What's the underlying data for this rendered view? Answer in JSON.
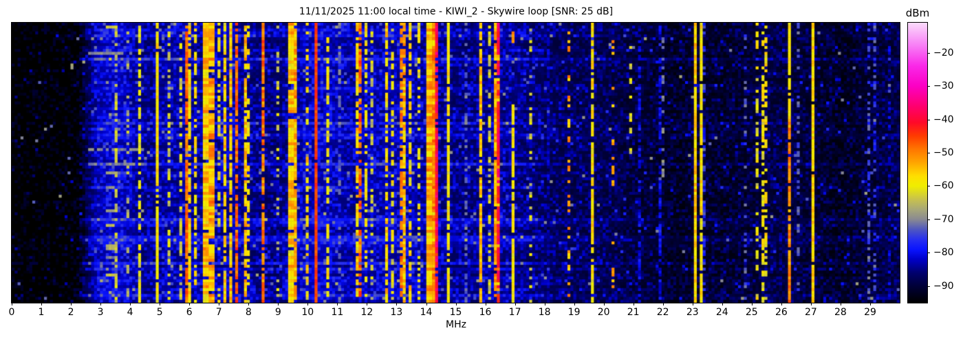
{
  "figure": {
    "background": "#ffffff"
  },
  "chart_data": {
    "type": "heatmap",
    "title": "11/11/2025 11:00 local time - KIWI_2 - Skywire loop [SNR: 25 dB]",
    "subtitle": "",
    "xlabel": "MHz",
    "x_range": [
      0,
      30
    ],
    "x_ticks": [
      0,
      1,
      2,
      3,
      4,
      5,
      6,
      7,
      8,
      9,
      10,
      11,
      12,
      13,
      14,
      15,
      16,
      17,
      18,
      19,
      20,
      21,
      22,
      23,
      24,
      25,
      26,
      27,
      28,
      29
    ],
    "y_axis_ticks": [],
    "grid": "off",
    "colorbar": {
      "label": "dBm",
      "range": [
        -95,
        -11
      ],
      "ticks": [
        {
          "v": -20,
          "label": "−20"
        },
        {
          "v": -30,
          "label": "−30"
        },
        {
          "v": -40,
          "label": "−40"
        },
        {
          "v": -50,
          "label": "−50"
        },
        {
          "v": -60,
          "label": "−60"
        },
        {
          "v": -70,
          "label": "−70"
        },
        {
          "v": -80,
          "label": "−80"
        },
        {
          "v": -90,
          "label": "−90"
        }
      ],
      "colormap_stops": [
        [
          -95,
          "#000000"
        ],
        [
          -90,
          "#000038"
        ],
        [
          -86,
          "#00006e"
        ],
        [
          -82,
          "#0000c8"
        ],
        [
          -79,
          "#0a14ff"
        ],
        [
          -76,
          "#2830f0"
        ],
        [
          -73,
          "#5058c0"
        ],
        [
          -70,
          "#8a8a92"
        ],
        [
          -67,
          "#a8a878"
        ],
        [
          -64,
          "#c8c24e"
        ],
        [
          -60,
          "#f0ee00"
        ],
        [
          -57,
          "#ffdf00"
        ],
        [
          -53,
          "#ffa600"
        ],
        [
          -49,
          "#ff7700"
        ],
        [
          -45,
          "#ff3c00"
        ],
        [
          -41,
          "#ff0a28"
        ],
        [
          -36,
          "#ff0070"
        ],
        [
          -30,
          "#fc00c4"
        ],
        [
          -24,
          "#fa28e8"
        ],
        [
          -18,
          "#f87cf6"
        ],
        [
          -11,
          "#fbdcfb"
        ]
      ]
    },
    "noise_floor_dbm": [
      [
        0,
        -97
      ],
      [
        1.5,
        -97
      ],
      [
        2.3,
        -96
      ],
      [
        2.55,
        -90
      ],
      [
        2.8,
        -85
      ],
      [
        3.1,
        -83.5
      ],
      [
        3.5,
        -82.5
      ],
      [
        3.9,
        -84
      ],
      [
        4.3,
        -86
      ],
      [
        4.7,
        -87
      ],
      [
        5.1,
        -85.5
      ],
      [
        5.5,
        -85.5
      ],
      [
        5.9,
        -86
      ],
      [
        6.4,
        -86
      ],
      [
        6.9,
        -85.5
      ],
      [
        7.4,
        -85
      ],
      [
        7.9,
        -86.5
      ],
      [
        8.6,
        -87.5
      ],
      [
        9.2,
        -87
      ],
      [
        9.8,
        -84.5
      ],
      [
        10.4,
        -83.5
      ],
      [
        11.0,
        -84.5
      ],
      [
        11.6,
        -85.5
      ],
      [
        12.2,
        -84.5
      ],
      [
        12.8,
        -84.5
      ],
      [
        13.4,
        -84.5
      ],
      [
        14.0,
        -86
      ],
      [
        14.6,
        -86.5
      ],
      [
        15.2,
        -87
      ],
      [
        15.8,
        -86.5
      ],
      [
        16.4,
        -86
      ],
      [
        17.0,
        -86.5
      ],
      [
        17.6,
        -88
      ],
      [
        18.2,
        -88.5
      ],
      [
        19.0,
        -89
      ],
      [
        20.0,
        -89.5
      ],
      [
        21.0,
        -91
      ],
      [
        21.8,
        -92
      ],
      [
        22.5,
        -93
      ],
      [
        23.2,
        -92
      ],
      [
        24.0,
        -92.5
      ],
      [
        24.8,
        -92
      ],
      [
        25.6,
        -90.5
      ],
      [
        26.4,
        -91
      ],
      [
        27.2,
        -92
      ],
      [
        28.0,
        -93
      ],
      [
        28.8,
        -92
      ],
      [
        29.4,
        -91
      ],
      [
        30,
        -90.5
      ]
    ],
    "signals": [
      {
        "f": 3.35,
        "w": 0.28,
        "level": -65,
        "jit": 5,
        "duty": 0.13
      },
      {
        "f": 3.49,
        "w": 0.06,
        "level": -61,
        "jit": 4,
        "duty": 0.5
      },
      {
        "f": 3.9,
        "w": 0.05,
        "level": -63,
        "jit": 4,
        "duty": 0.3
      },
      {
        "f": 4.28,
        "w": 0.06,
        "level": -58,
        "jit": 3,
        "duty": 0.6
      },
      {
        "f": 4.86,
        "w": 0.07,
        "level": -55,
        "jit": 3,
        "duty": 0.97
      },
      {
        "f": 5.33,
        "w": 0.05,
        "level": -62,
        "jit": 4,
        "duty": 0.45
      },
      {
        "f": 5.66,
        "w": 0.06,
        "level": -60,
        "jit": 4,
        "duty": 0.55
      },
      {
        "f": 5.9,
        "w": 0.05,
        "level": -47,
        "jit": 4,
        "duty": 0.85
      },
      {
        "f": 6.02,
        "w": 0.08,
        "level": -58,
        "jit": 5,
        "duty": 0.7
      },
      {
        "f": 6.18,
        "w": 0.06,
        "level": -56,
        "jit": 5,
        "duty": 0.6
      },
      {
        "f": 6.55,
        "w": 0.26,
        "level": -55,
        "jit": 6,
        "duty": 0.95
      },
      {
        "f": 6.76,
        "w": 0.12,
        "level": -52,
        "jit": 6,
        "duty": 0.9
      },
      {
        "f": 6.94,
        "w": 0.05,
        "level": -58,
        "jit": 4,
        "duty": 0.5
      },
      {
        "f": 7.23,
        "w": 0.08,
        "level": -56,
        "jit": 5,
        "duty": 0.8
      },
      {
        "f": 7.36,
        "w": 0.1,
        "level": -54,
        "jit": 6,
        "duty": 0.85
      },
      {
        "f": 7.62,
        "w": 0.05,
        "level": -46,
        "jit": 4,
        "duty": 0.8
      },
      {
        "f": 7.88,
        "w": 0.07,
        "level": -54,
        "jit": 5,
        "duty": 0.75
      },
      {
        "f": 8.02,
        "w": 0.05,
        "level": -57,
        "jit": 4,
        "duty": 0.5
      },
      {
        "f": 8.47,
        "w": 0.06,
        "level": -48,
        "jit": 5,
        "duty": 0.8
      },
      {
        "f": 9.0,
        "w": 0.05,
        "level": -62,
        "jit": 4,
        "duty": 0.35
      },
      {
        "f": 9.45,
        "w": 0.2,
        "level": -55,
        "jit": 6,
        "duty": 0.9
      },
      {
        "f": 9.62,
        "w": 0.1,
        "level": -52,
        "jit": 6,
        "duty": 0.85
      },
      {
        "f": 10.0,
        "w": 0.06,
        "level": -57,
        "jit": 5,
        "duty": 0.5
      },
      {
        "f": 10.29,
        "w": 0.05,
        "level": -44,
        "jit": 2,
        "duty": 0.99
      },
      {
        "f": 10.7,
        "w": 0.05,
        "level": -58,
        "jit": 4,
        "duty": 0.6
      },
      {
        "f": 11.0,
        "w": 0.04,
        "level": -69,
        "jit": 2,
        "duty": 0.4
      },
      {
        "f": 11.65,
        "w": 0.06,
        "level": -56,
        "jit": 5,
        "duty": 0.7
      },
      {
        "f": 11.77,
        "w": 0.05,
        "level": -48,
        "jit": 5,
        "duty": 0.7
      },
      {
        "f": 11.95,
        "w": 0.06,
        "level": -58,
        "jit": 4,
        "duty": 0.5
      },
      {
        "f": 12.1,
        "w": 0.05,
        "level": -60,
        "jit": 4,
        "duty": 0.45
      },
      {
        "f": 12.68,
        "w": 0.07,
        "level": -56,
        "jit": 5,
        "duty": 0.7
      },
      {
        "f": 12.85,
        "w": 0.05,
        "level": -59,
        "jit": 4,
        "duty": 0.5
      },
      {
        "f": 13.1,
        "w": 0.05,
        "level": -47,
        "jit": 4,
        "duty": 0.7
      },
      {
        "f": 13.28,
        "w": 0.12,
        "level": -54,
        "jit": 6,
        "duty": 0.8
      },
      {
        "f": 13.45,
        "w": 0.06,
        "level": -57,
        "jit": 5,
        "duty": 0.6
      },
      {
        "f": 13.75,
        "w": 0.05,
        "level": -60,
        "jit": 4,
        "duty": 0.4
      },
      {
        "f": 14.12,
        "w": 0.3,
        "level": -53,
        "jit": 6,
        "duty": 0.95
      },
      {
        "f": 14.2,
        "w": 0.08,
        "level": -48,
        "jit": 5,
        "duty": 0.8
      },
      {
        "f": 14.31,
        "w": 0.06,
        "level": -36,
        "jit": 5,
        "duty": 0.9
      },
      {
        "f": 14.76,
        "w": 0.04,
        "level": -58,
        "jit": 3,
        "duty": 0.85
      },
      {
        "f": 15.27,
        "w": 0.04,
        "level": -69,
        "jit": 2,
        "duty": 0.45
      },
      {
        "f": 15.84,
        "w": 0.09,
        "level": -55,
        "jit": 4,
        "duty": 0.9
      },
      {
        "f": 16.08,
        "w": 0.04,
        "level": -60,
        "jit": 3,
        "duty": 0.5
      },
      {
        "f": 16.4,
        "w": 0.22,
        "level": -52,
        "jit": 5,
        "duty": 0.9
      },
      {
        "f": 16.45,
        "w": 0.05,
        "level": -39,
        "jit": 4,
        "duty": 0.85
      },
      {
        "f": 16.9,
        "w": 0.04,
        "level": -56,
        "jit": 3,
        "duty": 0.9,
        "y0": 0.3,
        "y1": 1
      },
      {
        "f": 16.9,
        "w": 0.04,
        "level": -47,
        "jit": 3,
        "duty": 0.6,
        "y0": 0,
        "y1": 0.07
      },
      {
        "f": 17.55,
        "w": 0.05,
        "level": -62,
        "jit": 4,
        "duty": 0.3
      },
      {
        "f": 18.1,
        "w": 0.04,
        "level": -80,
        "jit": 3,
        "duty": 0.6
      },
      {
        "f": 18.84,
        "w": 0.06,
        "level": -52,
        "jit": 6,
        "duty": 0.3
      },
      {
        "f": 19.62,
        "w": 0.05,
        "level": -58,
        "jit": 4,
        "duty": 0.8
      },
      {
        "f": 20.28,
        "w": 0.04,
        "level": -50,
        "jit": 4,
        "duty": 0.2
      },
      {
        "f": 20.9,
        "w": 0.04,
        "level": -60,
        "jit": 3,
        "duty": 0.35,
        "y0": 0,
        "y1": 0.5
      },
      {
        "f": 21.2,
        "w": 0.04,
        "level": -80,
        "jit": 3,
        "duty": 0.5
      },
      {
        "f": 21.9,
        "w": 0.04,
        "level": -80,
        "jit": 3,
        "duty": 0.6
      },
      {
        "f": 22.0,
        "w": 0.04,
        "level": -70,
        "jit": 2,
        "duty": 0.4,
        "y0": 0.05,
        "y1": 0.55
      },
      {
        "f": 23.12,
        "w": 0.07,
        "level": -55,
        "jit": 4,
        "duty": 0.95
      },
      {
        "f": 23.25,
        "w": 0.07,
        "level": -56,
        "jit": 4,
        "duty": 0.9
      },
      {
        "f": 23.4,
        "w": 0.04,
        "level": -76,
        "jit": 4,
        "duty": 0.5
      },
      {
        "f": 24.8,
        "w": 0.04,
        "level": -72,
        "jit": 3,
        "duty": 0.3
      },
      {
        "f": 25.15,
        "w": 0.05,
        "level": -58,
        "jit": 4,
        "duty": 0.55
      },
      {
        "f": 25.35,
        "w": 0.05,
        "level": -57,
        "jit": 4,
        "duty": 0.6
      },
      {
        "f": 25.48,
        "w": 0.05,
        "level": -59,
        "jit": 4,
        "duty": 0.5
      },
      {
        "f": 26.25,
        "w": 0.06,
        "level": -57,
        "jit": 3,
        "duty": 0.9,
        "y0": 0,
        "y1": 0.35
      },
      {
        "f": 26.25,
        "w": 0.06,
        "level": -49,
        "jit": 4,
        "duty": 0.85,
        "y0": 0.35,
        "y1": 1
      },
      {
        "f": 26.5,
        "w": 0.04,
        "level": -70,
        "jit": 2,
        "duty": 0.3
      },
      {
        "f": 27.05,
        "w": 0.04,
        "level": -55,
        "jit": 3,
        "duty": 0.95
      },
      {
        "f": 28.95,
        "w": 0.04,
        "level": -73,
        "jit": 3,
        "duty": 0.5
      },
      {
        "f": 29.15,
        "w": 0.04,
        "level": -74,
        "jit": 3,
        "duty": 0.45
      },
      {
        "f": 29.6,
        "w": 0.04,
        "level": -80,
        "jit": 4,
        "duty": 0.4
      }
    ],
    "render": {
      "cols": 302,
      "rows": 96,
      "seed": 20251111,
      "speckle_prob": 0.045,
      "glitch_prob": 0.004
    }
  }
}
